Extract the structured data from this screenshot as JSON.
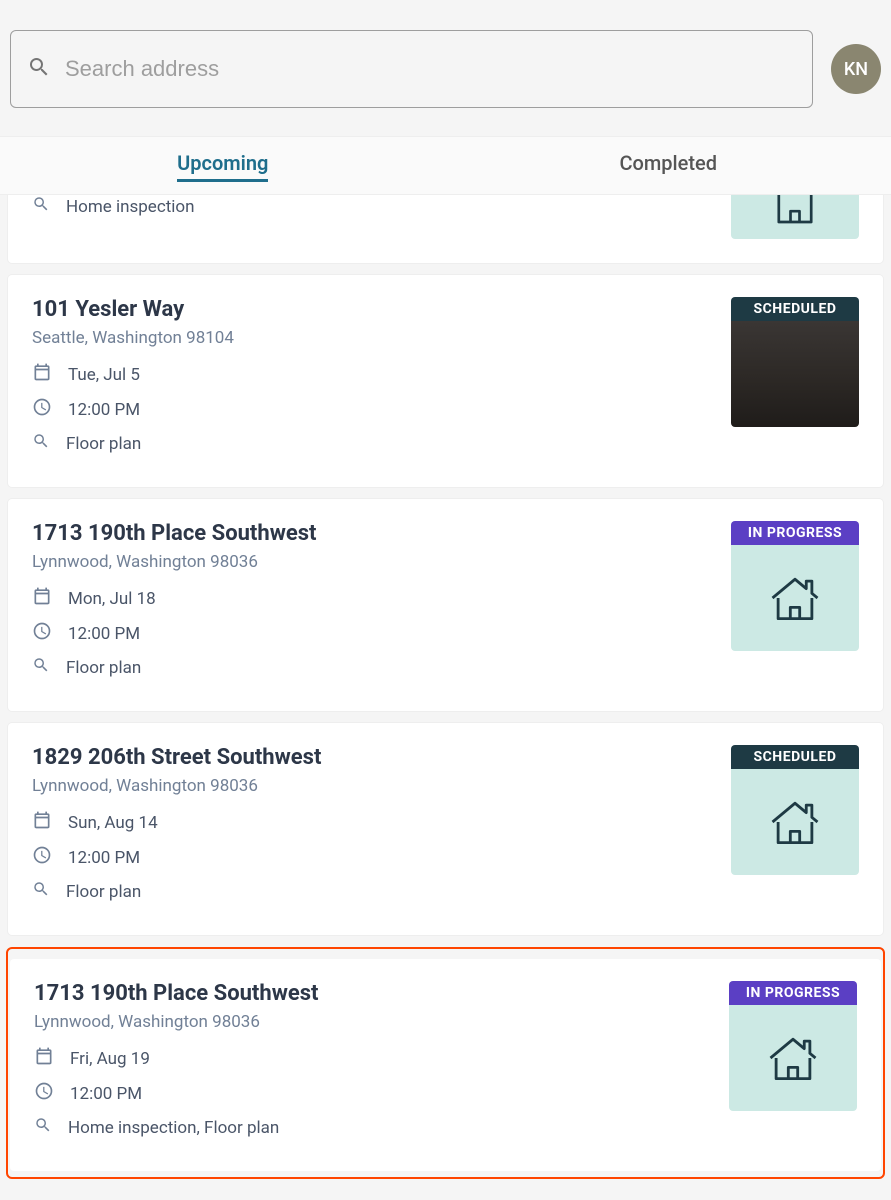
{
  "colors": {
    "accent_tab": "#1f6e8c",
    "badge_scheduled_bg": "#1e3a44",
    "badge_inprogress_bg": "#5b3fc4",
    "thumb_teal": "#cce9e4",
    "highlight_border": "#ff4500",
    "avatar_bg": "#8a8670"
  },
  "search": {
    "placeholder": "Search address"
  },
  "avatar": {
    "initials": "KN"
  },
  "tabs": {
    "upcoming": "Upcoming",
    "completed": "Completed"
  },
  "statuses": {
    "scheduled": "SCHEDULED",
    "in_progress": "IN PROGRESS"
  },
  "partial_card": {
    "service": "Home inspection"
  },
  "cards": [
    {
      "title": "101 Yesler Way",
      "subtitle": "Seattle, Washington 98104",
      "date": "Tue, Jul 5",
      "time": "12:00 PM",
      "service": "Floor plan",
      "status_key": "scheduled",
      "thumb": "photo"
    },
    {
      "title": "1713 190th Place Southwest",
      "subtitle": "Lynnwood, Washington 98036",
      "date": "Mon, Jul 18",
      "time": "12:00 PM",
      "service": "Floor plan",
      "status_key": "in_progress",
      "thumb": "house"
    },
    {
      "title": "1829 206th Street Southwest",
      "subtitle": "Lynnwood, Washington 98036",
      "date": "Sun, Aug 14",
      "time": "12:00 PM",
      "service": "Floor plan",
      "status_key": "scheduled",
      "thumb": "house"
    },
    {
      "title": "1713 190th Place Southwest",
      "subtitle": "Lynnwood, Washington 98036",
      "date": "Fri, Aug 19",
      "time": "12:00 PM",
      "service": "Home inspection, Floor plan",
      "status_key": "in_progress",
      "thumb": "house",
      "highlighted": true
    }
  ]
}
